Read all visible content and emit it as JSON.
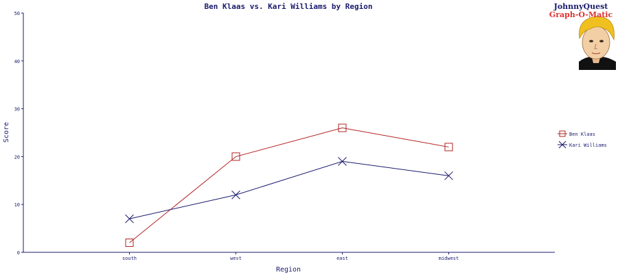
{
  "logo": {
    "line1": "JohnnyQuest",
    "line2": "Graph-O-Matic"
  },
  "colors": {
    "axis": "#1a1a6e",
    "ben": "#b22222",
    "kari": "#1a1a6e"
  },
  "chart_data": {
    "type": "line",
    "title": "Ben Klaas vs. Kari Williams by Region",
    "xlabel": "Region",
    "ylabel": "Score",
    "categories": [
      "south",
      "west",
      "east",
      "midwest"
    ],
    "ylim": [
      0,
      50
    ],
    "yticks": [
      0,
      10,
      20,
      30,
      40,
      50
    ],
    "grid": false,
    "legend_position": "right",
    "series": [
      {
        "name": "Ben Klaas",
        "marker": "square",
        "color": "#b22222",
        "values": [
          2,
          20,
          26,
          22
        ]
      },
      {
        "name": "Kari Williams",
        "marker": "x",
        "color": "#1a1a6e",
        "values": [
          7,
          12,
          19,
          16
        ]
      }
    ]
  }
}
